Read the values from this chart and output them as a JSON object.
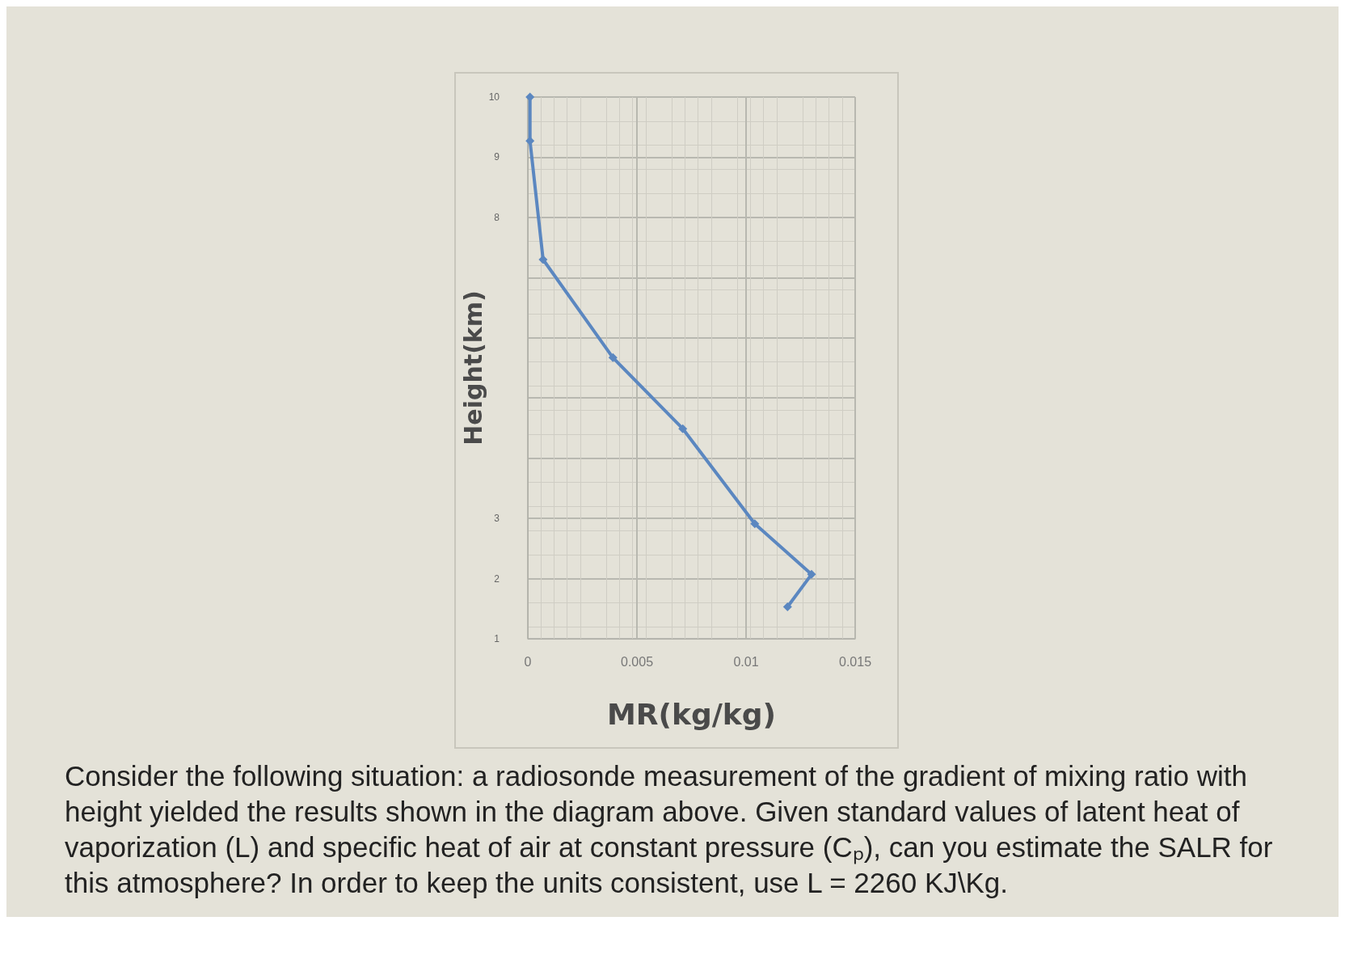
{
  "chart_data": {
    "type": "line",
    "xlabel": "MR(kg/kg)",
    "ylabel": "Height(km)",
    "x": [
      0.0001,
      0.0001,
      0.0007,
      0.0039,
      0.0071,
      0.0104,
      0.013,
      0.0119
    ],
    "series": [
      {
        "color": "#5b87c0",
        "values": [
          10,
          9.27,
          7.3,
          5.67,
          4.49,
          2.91,
          2.07,
          1.53
        ]
      }
    ],
    "xlim": [
      0,
      0.015
    ],
    "xticks": [
      0,
      0.005,
      0.01,
      0.015
    ],
    "ylim": [
      1,
      10
    ],
    "yticks": [
      1,
      2,
      3,
      {
        "value": 4,
        "label": null
      },
      {
        "value": 5,
        "label": null
      },
      {
        "value": 6,
        "label": null
      },
      {
        "value": 7,
        "label": null
      },
      8,
      9,
      10
    ],
    "grid": true,
    "marker": "diamond",
    "line_style": "solid",
    "annotations": [
      "Consider the following situation: a radiosonde measurement of the gradient of mixing ratio with height yielded the results shown in the diagram above.  Given standard values of latent heat of vaporization (L) and specific heat of air at constant pressure (Cₚ), can you estimate the SALR for this atmosphere?  In order to keep the units consistent, use L = 2260 KJ\\Kg."
    ]
  }
}
